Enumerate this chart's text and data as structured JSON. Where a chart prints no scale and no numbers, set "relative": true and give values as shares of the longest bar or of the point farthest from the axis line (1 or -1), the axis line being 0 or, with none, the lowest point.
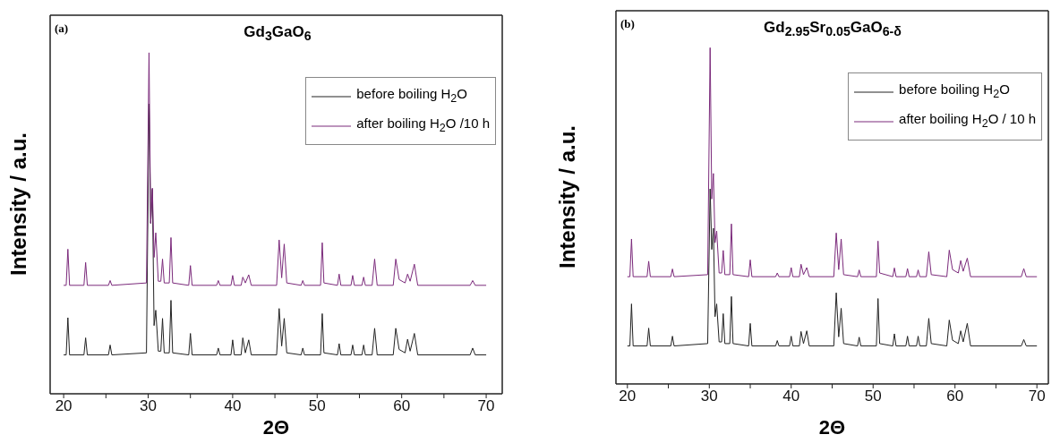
{
  "chart_data": [
    {
      "type": "line",
      "title": "Gd$_{3}$GaO$_{6}$",
      "annotations": [
        "(a)"
      ],
      "xlabel": "2Θ",
      "ylabel": "Intensity / a.u.",
      "relative": true,
      "legend": "top right",
      "xlim": [
        18.4,
        71.9
      ],
      "xticks": [
        20,
        {
          "value": 25,
          "label": null
        },
        30,
        {
          "value": 35,
          "label": null
        },
        40,
        {
          "value": 45,
          "label": null
        },
        50,
        {
          "value": 55,
          "label": null
        },
        60,
        {
          "value": 65,
          "label": null
        },
        70
      ],
      "x": [
        20,
        20.3,
        20.5,
        20.7,
        22.4,
        22.6,
        22.8,
        25.3,
        25.5,
        25.7,
        29.8,
        30.1,
        30.3,
        30.5,
        30.7,
        30.9,
        31.2,
        31.5,
        31.7,
        31.9,
        32.5,
        32.7,
        32.9,
        34.8,
        35,
        35.2,
        38.1,
        38.3,
        38.5,
        39.8,
        40,
        40.2,
        41,
        41.2,
        41.5,
        41.9,
        42.2,
        45.2,
        45.5,
        45.8,
        46.1,
        46.4,
        48.1,
        48.3,
        48.5,
        50.4,
        50.6,
        50.8,
        52.4,
        52.6,
        52.8,
        54,
        54.2,
        54.4,
        55.3,
        55.5,
        55.7,
        56.5,
        56.8,
        57.1,
        59,
        59.3,
        59.7,
        60.4,
        60.7,
        61,
        61.5,
        61.9,
        68.1,
        68.4,
        68.7,
        70
      ],
      "series": [
        {
          "name": "before boiling H$_{2}$O",
          "color": "#222222",
          "values": [
            0.114,
            0.114,
            0.223,
            0.114,
            0.114,
            0.164,
            0.114,
            0.114,
            0.143,
            0.114,
            0.12,
            0.85,
            0.5,
            0.6,
            0.2,
            0.245,
            0.125,
            0.125,
            0.221,
            0.12,
            0.12,
            0.274,
            0.12,
            0.114,
            0.177,
            0.114,
            0.114,
            0.134,
            0.114,
            0.114,
            0.158,
            0.114,
            0.114,
            0.164,
            0.12,
            0.158,
            0.114,
            0.114,
            0.25,
            0.14,
            0.221,
            0.12,
            0.114,
            0.134,
            0.114,
            0.114,
            0.235,
            0.12,
            0.114,
            0.147,
            0.114,
            0.114,
            0.143,
            0.114,
            0.114,
            0.143,
            0.114,
            0.114,
            0.192,
            0.114,
            0.114,
            0.192,
            0.13,
            0.12,
            0.16,
            0.125,
            0.177,
            0.114,
            0.114,
            0.134,
            0.114,
            0.114
          ]
        },
        {
          "name": "after boiling H$_{2}$O /10 h",
          "color": "#7b2a7b",
          "values": [
            0.318,
            0.318,
            0.424,
            0.318,
            0.318,
            0.385,
            0.318,
            0.318,
            0.332,
            0.318,
            0.325,
            1.0,
            0.5,
            0.603,
            0.4,
            0.472,
            0.33,
            0.33,
            0.395,
            0.325,
            0.325,
            0.458,
            0.325,
            0.318,
            0.376,
            0.318,
            0.318,
            0.332,
            0.318,
            0.318,
            0.347,
            0.318,
            0.318,
            0.342,
            0.325,
            0.349,
            0.318,
            0.318,
            0.451,
            0.34,
            0.439,
            0.325,
            0.318,
            0.332,
            0.318,
            0.318,
            0.443,
            0.325,
            0.318,
            0.351,
            0.318,
            0.318,
            0.347,
            0.318,
            0.318,
            0.342,
            0.318,
            0.318,
            0.395,
            0.318,
            0.318,
            0.395,
            0.335,
            0.325,
            0.351,
            0.33,
            0.38,
            0.318,
            0.318,
            0.332,
            0.318,
            0.318
          ]
        }
      ]
    },
    {
      "type": "line",
      "title": "Gd$_{2.95}$Sr$_{0.05}$GaO$_{6-δ}$",
      "annotations": [
        "(b)"
      ],
      "xlabel": "2Θ",
      "ylabel": "Intensity / a.u.",
      "relative": true,
      "legend": "top right",
      "xlim": [
        18.6,
        71.4
      ],
      "xticks": [
        20,
        {
          "value": 25,
          "label": null
        },
        30,
        {
          "value": 35,
          "label": null
        },
        40,
        {
          "value": 45,
          "label": null
        },
        50,
        {
          "value": 55,
          "label": null
        },
        60,
        {
          "value": 65,
          "label": null
        },
        70
      ],
      "x": [
        20,
        20.3,
        20.5,
        20.7,
        22.4,
        22.6,
        22.8,
        25.3,
        25.5,
        25.7,
        29.8,
        30.1,
        30.3,
        30.5,
        30.7,
        30.9,
        31.2,
        31.5,
        31.7,
        31.9,
        32.5,
        32.7,
        32.9,
        34.8,
        35,
        35.2,
        38.1,
        38.3,
        38.5,
        39.8,
        40,
        40.2,
        41,
        41.2,
        41.5,
        41.9,
        42.2,
        45.2,
        45.5,
        45.8,
        46.1,
        46.4,
        48.1,
        48.3,
        48.5,
        50.4,
        50.6,
        50.8,
        52.4,
        52.6,
        52.8,
        54,
        54.2,
        54.4,
        55.3,
        55.5,
        55.7,
        56.5,
        56.8,
        57.1,
        59,
        59.3,
        59.7,
        60.4,
        60.7,
        61,
        61.5,
        61.9,
        68.1,
        68.4,
        68.7,
        70
      ],
      "series": [
        {
          "name": "before boiling H$_{2}$O",
          "color": "#222222",
          "values": [
            0.113,
            0.113,
            0.238,
            0.113,
            0.113,
            0.166,
            0.113,
            0.113,
            0.142,
            0.113,
            0.12,
            0.58,
            0.4,
            0.463,
            0.2,
            0.238,
            0.125,
            0.125,
            0.209,
            0.12,
            0.12,
            0.26,
            0.12,
            0.113,
            0.18,
            0.113,
            0.113,
            0.129,
            0.113,
            0.113,
            0.142,
            0.113,
            0.113,
            0.156,
            0.12,
            0.158,
            0.113,
            0.113,
            0.271,
            0.14,
            0.225,
            0.12,
            0.113,
            0.139,
            0.113,
            0.113,
            0.254,
            0.12,
            0.113,
            0.149,
            0.113,
            0.113,
            0.142,
            0.113,
            0.113,
            0.142,
            0.113,
            0.113,
            0.195,
            0.12,
            0.113,
            0.19,
            0.13,
            0.12,
            0.158,
            0.125,
            0.18,
            0.113,
            0.113,
            0.132,
            0.113,
            0.113
          ]
        },
        {
          "name": "after boiling H$_{2}$O / 10 h",
          "color": "#7b2a7b",
          "values": [
            0.319,
            0.319,
            0.431,
            0.319,
            0.319,
            0.365,
            0.319,
            0.319,
            0.342,
            0.319,
            0.325,
            1.0,
            0.55,
            0.626,
            0.42,
            0.455,
            0.33,
            0.33,
            0.397,
            0.325,
            0.325,
            0.476,
            0.325,
            0.319,
            0.369,
            0.319,
            0.319,
            0.33,
            0.319,
            0.319,
            0.346,
            0.319,
            0.319,
            0.356,
            0.325,
            0.346,
            0.319,
            0.319,
            0.449,
            0.34,
            0.431,
            0.325,
            0.319,
            0.339,
            0.319,
            0.319,
            0.425,
            0.33,
            0.319,
            0.345,
            0.319,
            0.319,
            0.343,
            0.319,
            0.319,
            0.339,
            0.319,
            0.319,
            0.393,
            0.325,
            0.319,
            0.398,
            0.34,
            0.33,
            0.367,
            0.335,
            0.374,
            0.319,
            0.319,
            0.343,
            0.319,
            0.319
          ]
        }
      ]
    }
  ]
}
